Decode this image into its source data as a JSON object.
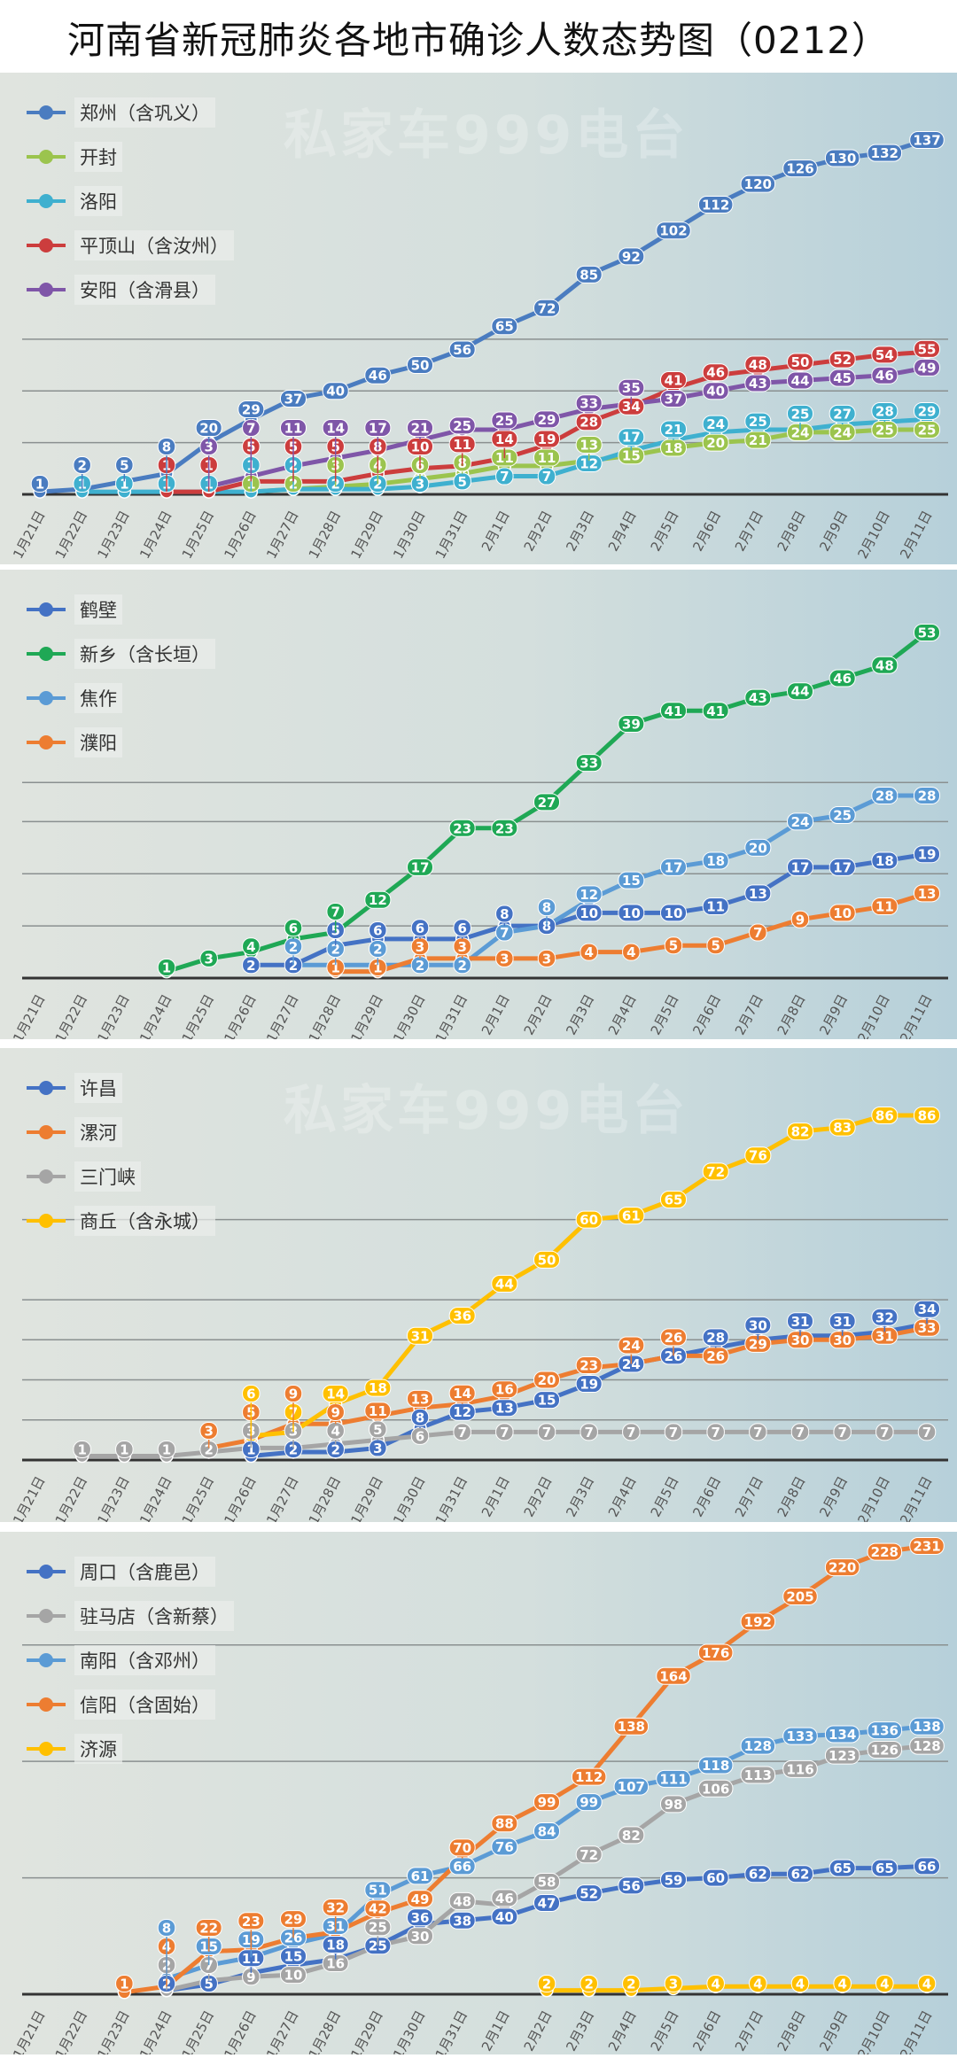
{
  "title": "河南省新冠肺炎各地市确诊人数态势图（0212）",
  "watermark": "私家车999电台",
  "chart_data": [
    {
      "type": "line",
      "categories": [
        "1月21日",
        "1月22日",
        "1月23日",
        "1月24日",
        "1月25日",
        "1月26日",
        "1月27日",
        "1月28日",
        "1月29日",
        "1月30日",
        "1月31日",
        "2月1日",
        "2月2日",
        "2月3日",
        "2月4日",
        "2月5日",
        "2月6日",
        "2月7日",
        "2月8日",
        "2月9日",
        "2月10日",
        "2月11日"
      ],
      "legend": "top-left",
      "grid": true,
      "series": [
        {
          "name": "郑州（含巩义）",
          "color": "#4a7cc0",
          "values": [
            1,
            2,
            5,
            8,
            20,
            29,
            37,
            40,
            46,
            50,
            56,
            65,
            72,
            85,
            92,
            102,
            112,
            120,
            126,
            130,
            132,
            137
          ]
        },
        {
          "name": "开封",
          "color": "#9bc44e",
          "values": [
            null,
            null,
            null,
            null,
            null,
            1,
            2,
            3,
            4,
            6,
            8,
            11,
            11,
            13,
            15,
            18,
            20,
            21,
            24,
            24,
            25,
            25
          ]
        },
        {
          "name": "洛阳",
          "color": "#3fb0cf",
          "values": [
            null,
            1,
            1,
            1,
            1,
            1,
            2,
            2,
            2,
            3,
            5,
            7,
            7,
            12,
            17,
            21,
            24,
            25,
            25,
            27,
            28,
            29
          ]
        },
        {
          "name": "平顶山（含汝州）",
          "color": "#cc3d3d",
          "values": [
            null,
            null,
            null,
            1,
            1,
            5,
            5,
            5,
            8,
            10,
            11,
            14,
            19,
            28,
            34,
            41,
            46,
            48,
            50,
            52,
            54,
            55
          ]
        },
        {
          "name": "安阳（含滑县）",
          "color": "#7f56a8",
          "values": [
            null,
            null,
            null,
            null,
            3,
            7,
            11,
            14,
            17,
            21,
            25,
            25,
            29,
            33,
            35,
            37,
            40,
            43,
            44,
            45,
            46,
            49
          ]
        }
      ]
    },
    {
      "type": "line",
      "categories": [
        "1月21日",
        "1月22日",
        "1月23日",
        "1月24日",
        "1月25日",
        "1月26日",
        "1月27日",
        "1月28日",
        "1月29日",
        "1月30日",
        "1月31日",
        "2月1日",
        "2月2日",
        "2月3日",
        "2月4日",
        "2月5日",
        "2月6日",
        "2月7日",
        "2月8日",
        "2月9日",
        "2月10日",
        "2月11日"
      ],
      "legend": "top-left",
      "grid": true,
      "series": [
        {
          "name": "鹤壁",
          "color": "#4472c4",
          "values": [
            null,
            null,
            null,
            null,
            null,
            2,
            2,
            5,
            6,
            6,
            6,
            8,
            8,
            10,
            10,
            10,
            11,
            13,
            17,
            17,
            18,
            19
          ]
        },
        {
          "name": "新乡（含长垣）",
          "color": "#1fa855",
          "values": [
            null,
            null,
            null,
            1,
            3,
            4,
            6,
            7,
            12,
            17,
            23,
            23,
            27,
            33,
            39,
            41,
            41,
            43,
            44,
            46,
            48,
            53
          ]
        },
        {
          "name": "焦作",
          "color": "#5b9bd5",
          "values": [
            null,
            null,
            null,
            null,
            null,
            null,
            2,
            2,
            2,
            2,
            2,
            7,
            8,
            12,
            15,
            17,
            18,
            20,
            24,
            25,
            28,
            28
          ]
        },
        {
          "name": "濮阳",
          "color": "#ed7d31",
          "values": [
            null,
            null,
            null,
            null,
            null,
            null,
            null,
            1,
            1,
            3,
            3,
            3,
            3,
            4,
            4,
            5,
            5,
            7,
            9,
            10,
            11,
            13
          ]
        }
      ]
    },
    {
      "type": "line",
      "categories": [
        "1月21日",
        "1月22日",
        "1月23日",
        "1月24日",
        "1月25日",
        "1月26日",
        "1月27日",
        "1月28日",
        "1月29日",
        "1月30日",
        "1月31日",
        "2月1日",
        "2月2日",
        "2月3日",
        "2月4日",
        "2月5日",
        "2月6日",
        "2月7日",
        "2月8日",
        "2月9日",
        "2月10日",
        "2月11日"
      ],
      "legend": "top-left",
      "grid": true,
      "series": [
        {
          "name": "许昌",
          "color": "#4472c4",
          "values": [
            null,
            null,
            null,
            null,
            null,
            1,
            2,
            2,
            3,
            8,
            12,
            13,
            15,
            19,
            24,
            26,
            28,
            30,
            31,
            31,
            32,
            34
          ]
        },
        {
          "name": "漯河",
          "color": "#ed7d31",
          "values": [
            null,
            null,
            null,
            null,
            3,
            5,
            9,
            9,
            11,
            13,
            14,
            16,
            20,
            23,
            24,
            26,
            26,
            29,
            30,
            30,
            31,
            33
          ]
        },
        {
          "name": "三门峡",
          "color": "#a5a5a5",
          "values": [
            null,
            1,
            1,
            1,
            2,
            3,
            3,
            4,
            5,
            6,
            7,
            7,
            7,
            7,
            7,
            7,
            7,
            7,
            7,
            7,
            7,
            7
          ]
        },
        {
          "name": "商丘（含永城）",
          "color": "#ffc000",
          "values": [
            null,
            null,
            null,
            null,
            null,
            6,
            7,
            14,
            18,
            31,
            36,
            44,
            50,
            60,
            61,
            65,
            72,
            76,
            82,
            83,
            86,
            86
          ]
        }
      ]
    },
    {
      "type": "line",
      "categories": [
        "1月21日",
        "1月22日",
        "1月23日",
        "1月24日",
        "1月25日",
        "1月26日",
        "1月27日",
        "1月28日",
        "1月29日",
        "1月30日",
        "1月31日",
        "2月1日",
        "2月2日",
        "2月3日",
        "2月4日",
        "2月5日",
        "2月6日",
        "2月7日",
        "2月8日",
        "2月9日",
        "2月10日",
        "2月11日"
      ],
      "legend": "top-left",
      "grid": true,
      "series": [
        {
          "name": "周口（含鹿邑）",
          "color": "#4472c4",
          "values": [
            null,
            null,
            null,
            2,
            5,
            11,
            15,
            18,
            25,
            36,
            38,
            40,
            47,
            52,
            56,
            59,
            60,
            62,
            62,
            65,
            65,
            66
          ]
        },
        {
          "name": "驻马店（含新蔡）",
          "color": "#a5a5a5",
          "values": [
            null,
            null,
            null,
            2,
            7,
            9,
            10,
            16,
            25,
            30,
            48,
            46,
            58,
            72,
            82,
            98,
            106,
            113,
            116,
            123,
            126,
            128
          ]
        },
        {
          "name": "南阳（含邓州）",
          "color": "#5b9bd5",
          "values": [
            null,
            null,
            null,
            8,
            15,
            19,
            26,
            31,
            51,
            61,
            66,
            76,
            84,
            99,
            107,
            111,
            118,
            128,
            133,
            134,
            136,
            138
          ]
        },
        {
          "name": "信阳（含固始）",
          "color": "#ed7d31",
          "values": [
            null,
            null,
            1,
            4,
            22,
            23,
            29,
            32,
            42,
            49,
            70,
            88,
            99,
            112,
            138,
            164,
            176,
            192,
            205,
            220,
            228,
            231
          ]
        },
        {
          "name": "济源",
          "color": "#ffc000",
          "values": [
            null,
            null,
            null,
            null,
            null,
            null,
            null,
            null,
            null,
            null,
            null,
            null,
            2,
            2,
            2,
            3,
            4,
            4,
            4,
            4,
            4,
            4
          ]
        }
      ]
    }
  ]
}
